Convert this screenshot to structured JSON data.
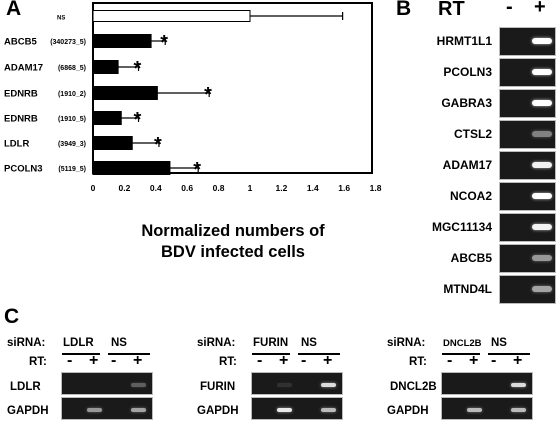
{
  "panel_a": {
    "letter": "A",
    "chart_data": {
      "type": "bar",
      "orientation": "horizontal",
      "rows": [
        {
          "gene": "NS",
          "code": "",
          "value": 1.0,
          "error": 0.59,
          "marker": "",
          "filled": false
        },
        {
          "gene": "ABCB5",
          "code": "(340273_5)",
          "value": 0.37,
          "error": 0.09,
          "marker": "*",
          "filled": true
        },
        {
          "gene": "ADAM17",
          "code": "(6868_5)",
          "value": 0.16,
          "error": 0.13,
          "marker": "*",
          "filled": true
        },
        {
          "gene": "EDNRB",
          "code": "(1910_2)",
          "value": 0.41,
          "error": 0.33,
          "marker": "*",
          "filled": true
        },
        {
          "gene": "EDNRB",
          "code": "(1910_5)",
          "value": 0.18,
          "error": 0.11,
          "marker": "*",
          "filled": true
        },
        {
          "gene": "LDLR",
          "code": "(3949_3)",
          "value": 0.25,
          "error": 0.17,
          "marker": "*",
          "filled": true
        },
        {
          "gene": "PCOLN3",
          "code": "(5119_5)",
          "value": 0.49,
          "error": 0.18,
          "marker": "*",
          "filled": true
        }
      ],
      "xticks": [
        "0",
        "0.2",
        "0.4",
        "0.6",
        "0.8",
        "1",
        "1.2",
        "1.4",
        "1.6",
        "1.8"
      ],
      "xlim": [
        0,
        1.8
      ],
      "xlabel_line1": "Normalized numbers of",
      "xlabel_line2": "BDV infected cells"
    }
  },
  "panel_b": {
    "letter": "B",
    "rt_label": "RT",
    "minus": "-",
    "plus": "+",
    "genes": [
      {
        "name": "HRMT1L1",
        "plus": 1.0,
        "minus": 0.0
      },
      {
        "name": "PCOLN3",
        "plus": 1.0,
        "minus": 0.0
      },
      {
        "name": "GABRA3",
        "plus": 1.0,
        "minus": 0.0
      },
      {
        "name": "CTSL2",
        "plus": 0.45,
        "minus": 0.0
      },
      {
        "name": "ADAM17",
        "plus": 0.95,
        "minus": 0.0
      },
      {
        "name": "NCOA2",
        "plus": 1.0,
        "minus": 0.0
      },
      {
        "name": "MGC11134",
        "plus": 0.95,
        "minus": 0.0
      },
      {
        "name": "ABCB5",
        "plus": 0.55,
        "minus": 0.0
      },
      {
        "name": "MTND4L",
        "plus": 0.6,
        "minus": 0.0
      }
    ]
  },
  "panel_c": {
    "letter": "C",
    "sirna_label": "siRNA:",
    "rt_label": "RT:",
    "minus": "-",
    "plus": "+",
    "blocks": [
      {
        "sirna": "LDLR",
        "ns": "NS",
        "gene": "LDLR",
        "gapdh": "GAPDH",
        "gene_bands": [
          0,
          0,
          0,
          0.3
        ],
        "gapdh_bands": [
          0,
          0.55,
          0,
          0.6
        ]
      },
      {
        "sirna": "FURIN",
        "ns": "NS",
        "gene": "FURIN",
        "gapdh": "GAPDH",
        "gene_bands": [
          0,
          0.1,
          0,
          0.85
        ],
        "gapdh_bands": [
          0,
          0.9,
          0,
          0.7
        ]
      },
      {
        "sirna": "DNCL2B",
        "ns": "NS",
        "gene": "DNCL2B",
        "gapdh": "GAPDH",
        "gene_bands": [
          0,
          0,
          0,
          0.85
        ],
        "gapdh_bands": [
          0,
          0.7,
          0,
          0.7
        ]
      }
    ]
  }
}
